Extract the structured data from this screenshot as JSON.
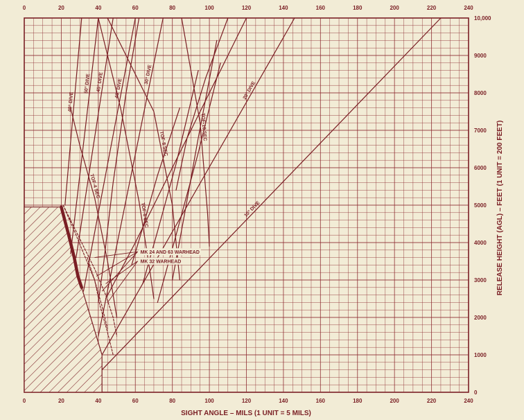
{
  "chart_data": {
    "type": "line",
    "xlabel": "SIGHT ANGLE – MILS (1 UNIT = 5 MILS)",
    "ylabel": "RELEASE HEIGHT (AGL) – FEET (1 UNIT = 200 FEET)",
    "xlim": [
      0,
      240
    ],
    "ylim": [
      0,
      10000
    ],
    "x_ticks": [
      "0",
      "20",
      "40",
      "60",
      "80",
      "100",
      "120",
      "140",
      "160",
      "180",
      "200",
      "220",
      "240"
    ],
    "y_ticks": [
      "0",
      "1000",
      "2000",
      "3000",
      "4000",
      "5000",
      "6000",
      "7000",
      "8000",
      "9000",
      "10,000"
    ],
    "grid": "on",
    "colors": {
      "ink": "#7a1e24",
      "paper": "#f2ecd6",
      "grid": "#8c2a30"
    },
    "series": [
      {
        "name": "40° DIVE",
        "style": "solid",
        "points": [
          [
            22,
            5000
          ],
          [
            31,
            10000
          ]
        ]
      },
      {
        "name": "50° DIVE",
        "style": "solid",
        "points": [
          [
            25,
            3700
          ],
          [
            40,
            10000
          ]
        ]
      },
      {
        "name": "45° DIVE",
        "style": "solid",
        "points": [
          [
            28,
            3600
          ],
          [
            48,
            10000
          ]
        ]
      },
      {
        "name": "40° DIVE",
        "style": "solid",
        "points": [
          [
            32,
            2700
          ],
          [
            60,
            10000
          ]
        ]
      },
      {
        "name": "30° DIVE",
        "style": "solid",
        "points": [
          [
            40,
            1500
          ],
          [
            75,
            10000
          ]
        ]
      },
      {
        "name": "20° DIVE",
        "style": "solid",
        "points": [
          [
            42,
            1000
          ],
          [
            146,
            10000
          ]
        ]
      },
      {
        "name": "10° DIVE",
        "style": "solid",
        "points": [
          [
            42,
            600
          ],
          [
            225,
            10000
          ]
        ]
      },
      {
        "name": "TOF-4 SEC",
        "style": "solid",
        "points": [
          [
            25,
            7600
          ],
          [
            30,
            6600
          ],
          [
            38,
            5200
          ],
          [
            45,
            3500
          ],
          [
            50,
            2000
          ]
        ]
      },
      {
        "name": "TOF-6 SEC",
        "style": "solid",
        "points": [
          [
            40,
            10000
          ],
          [
            52,
            7600
          ],
          [
            62,
            5100
          ],
          [
            68,
            3200
          ],
          [
            70,
            2500
          ]
        ]
      },
      {
        "name": "TOF-8 SEC",
        "style": "solid",
        "points": [
          [
            45,
            10000
          ],
          [
            70,
            7500
          ],
          [
            80,
            5000
          ],
          [
            84,
            3000
          ]
        ]
      },
      {
        "name": "TOF-10 SEC",
        "style": "solid",
        "points": [
          [
            85,
            10000
          ],
          [
            95,
            7200
          ],
          [
            99,
            4800
          ],
          [
            100,
            3900
          ]
        ]
      },
      {
        "name": "",
        "style": "solid",
        "points": [
          [
            62,
            10000
          ],
          [
            55,
            8000
          ],
          [
            48,
            5600
          ],
          [
            43,
            3500
          ],
          [
            40,
            2400
          ]
        ]
      },
      {
        "name": "",
        "style": "solid",
        "points": [
          [
            120,
            10000
          ],
          [
            100,
            8000
          ],
          [
            80,
            6000
          ],
          [
            60,
            4000
          ],
          [
            44,
            2500
          ]
        ]
      },
      {
        "name": "",
        "style": "solid",
        "points": [
          [
            58,
            3400
          ],
          [
            64,
            4400
          ],
          [
            72,
            5800
          ],
          [
            84,
            7600
          ]
        ]
      },
      {
        "name": "",
        "style": "solid",
        "points": [
          [
            64,
            2900
          ],
          [
            72,
            4300
          ],
          [
            82,
            6100
          ],
          [
            94,
            8600
          ]
        ]
      },
      {
        "name": "",
        "style": "solid",
        "points": [
          [
            72,
            2400
          ],
          [
            82,
            4200
          ],
          [
            94,
            6400
          ],
          [
            106,
            8800
          ]
        ]
      },
      {
        "name": "",
        "style": "solid",
        "points": [
          [
            80,
            3000
          ],
          [
            86,
            4600
          ],
          [
            94,
            6800
          ],
          [
            104,
            9400
          ]
        ]
      },
      {
        "name": "",
        "style": "solid",
        "points": [
          [
            110,
            10000
          ],
          [
            98,
            8400
          ],
          [
            88,
            6800
          ],
          [
            82,
            5400
          ]
        ]
      },
      {
        "name": "",
        "style": "dashed",
        "points": [
          [
            21,
            5000
          ],
          [
            28,
            4200
          ],
          [
            33,
            3600
          ],
          [
            38,
            3000
          ],
          [
            41,
            2300
          ],
          [
            45,
            1600
          ],
          [
            48,
            1000
          ]
        ]
      },
      {
        "name": "",
        "style": "dashed",
        "points": [
          [
            21,
            5000
          ],
          [
            31,
            4000
          ],
          [
            38,
            3300
          ],
          [
            44,
            2600
          ],
          [
            48,
            2000
          ],
          [
            50,
            1500
          ]
        ]
      },
      {
        "name": "",
        "style": "dashed",
        "points": [
          [
            34,
            3600
          ],
          [
            38,
            3000
          ],
          [
            42,
            2300
          ],
          [
            45,
            1700
          ]
        ]
      },
      {
        "name": "",
        "style": "thick",
        "points": [
          [
            20,
            4950
          ],
          [
            24,
            4200
          ],
          [
            27,
            3600
          ],
          [
            29,
            3100
          ],
          [
            31,
            2800
          ]
        ]
      }
    ],
    "release_limit_region": [
      [
        0,
        4950
      ],
      [
        20,
        4950
      ],
      [
        31,
        2800
      ],
      [
        42,
        1000
      ],
      [
        42,
        0
      ],
      [
        0,
        0
      ]
    ],
    "annotations": [
      {
        "text": "MK 24 AND 63 WARHEAD",
        "at": [
          62,
          3700
        ],
        "arrows_to": [
          [
            38,
            3600
          ],
          [
            39,
            3100
          ],
          [
            42,
            2700
          ]
        ]
      },
      {
        "text": "MK 32 WARHEAD",
        "at": [
          62,
          3450
        ],
        "arrows_to": [
          [
            44,
            2900
          ],
          [
            45,
            2400
          ]
        ]
      }
    ]
  }
}
